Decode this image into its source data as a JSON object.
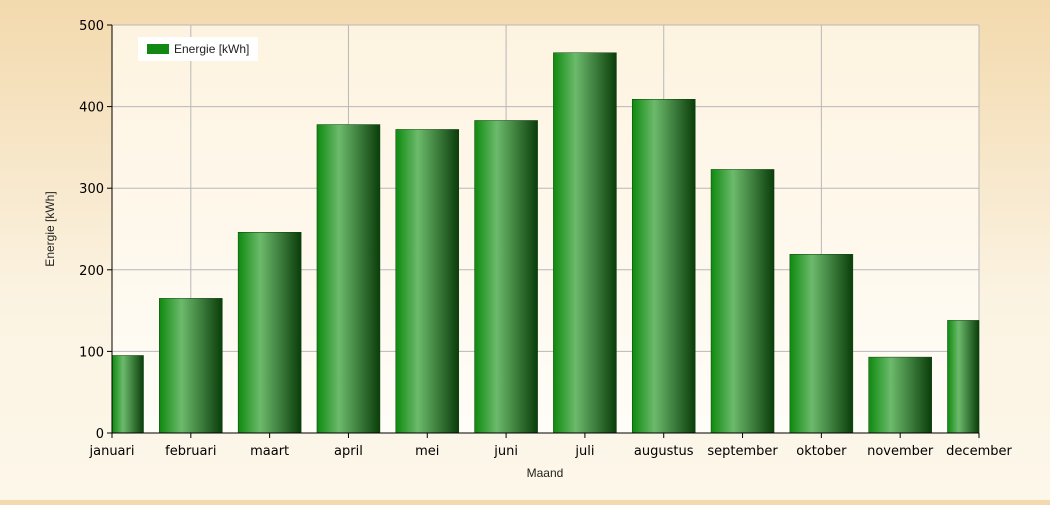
{
  "chart_data": {
    "type": "bar",
    "categories": [
      "januari",
      "februari",
      "maart",
      "april",
      "mei",
      "juni",
      "juli",
      "augustus",
      "september",
      "oktober",
      "november",
      "december"
    ],
    "series": [
      {
        "name": "Energie [kWh]",
        "color": "#118811",
        "values": [
          95,
          165,
          246,
          378,
          372,
          383,
          466,
          409,
          323,
          219,
          93,
          138
        ]
      }
    ],
    "xlabel": "Maand",
    "ylabel": "Energie [kWh]",
    "ylim": [
      0,
      500
    ],
    "yticks": [
      0,
      100,
      200,
      300,
      400,
      500
    ],
    "grid": true,
    "legend_position": "top-left"
  }
}
